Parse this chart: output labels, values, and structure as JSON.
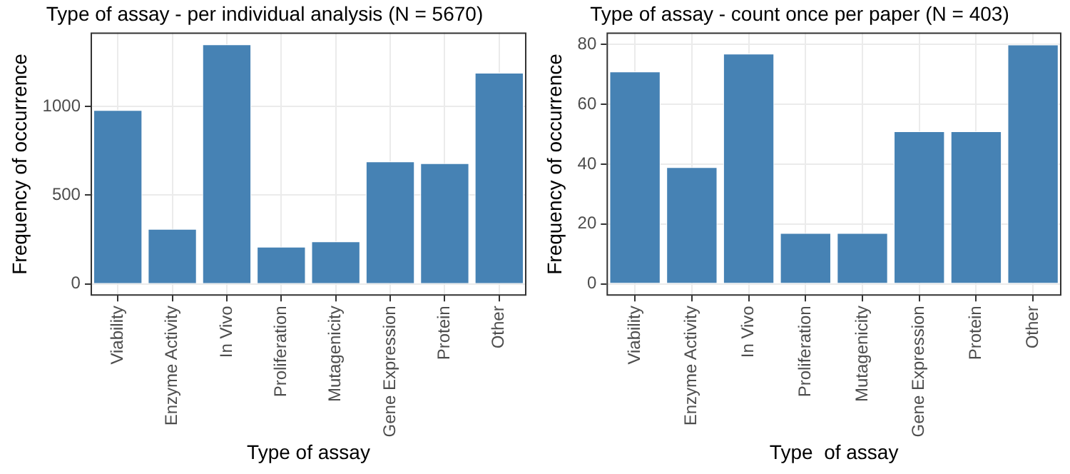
{
  "chart_data": [
    {
      "type": "bar",
      "title": "Type of assay - per individual analysis (N = 5670)",
      "xlabel": "Type of assay",
      "ylabel": "Frequency of occurrence",
      "categories": [
        "Viability",
        "Enzyme Activity",
        "In Vivo",
        "Proliferation",
        "Mutagenicity",
        "Gene Expression",
        "Protein",
        "Other"
      ],
      "values": [
        980,
        310,
        1350,
        210,
        240,
        690,
        680,
        1190
      ],
      "color": "#4682b4",
      "ylim": [
        -67,
        1416
      ],
      "yticks": [
        0,
        500,
        1000
      ],
      "grid": true,
      "legend": false
    },
    {
      "type": "bar",
      "title": "Type of assay - count once per paper (N = 403)",
      "xlabel": "Type  of assay",
      "ylabel": "Frequency of occurrence",
      "categories": [
        "Viability",
        "Enzyme Activity",
        "In Vivo",
        "Proliferation",
        "Mutagenicity",
        "Gene Expression",
        "Protein",
        "Other"
      ],
      "values": [
        71,
        39,
        77,
        17,
        17,
        51,
        51,
        80
      ],
      "color": "#4682b4",
      "ylim": [
        -4,
        84
      ],
      "yticks": [
        0,
        20,
        40,
        60,
        80
      ],
      "grid": true,
      "legend": false
    }
  ]
}
